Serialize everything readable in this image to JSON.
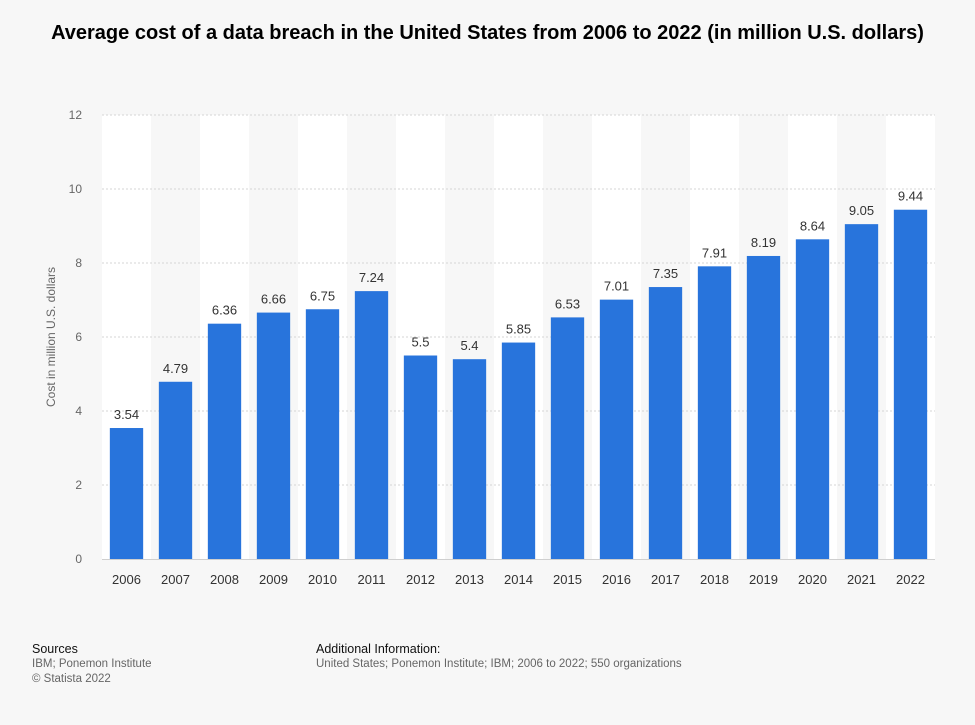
{
  "chart_data": {
    "type": "bar",
    "title": "Average cost of a data breach in the United States from 2006 to 2022 (in million U.S. dollars)",
    "xlabel": "",
    "ylabel": "Cost in million U.S. dollars",
    "ylim": [
      0,
      12
    ],
    "yticks": [
      0,
      2,
      4,
      6,
      8,
      10,
      12
    ],
    "grid": true,
    "categories": [
      "2006",
      "2007",
      "2008",
      "2009",
      "2010",
      "2011",
      "2012",
      "2013",
      "2014",
      "2015",
      "2016",
      "2017",
      "2018",
      "2019",
      "2020",
      "2021",
      "2022"
    ],
    "values": [
      3.54,
      4.79,
      6.36,
      6.66,
      6.75,
      7.24,
      5.5,
      5.4,
      5.85,
      6.53,
      7.01,
      7.35,
      7.91,
      8.19,
      8.64,
      9.05,
      9.44
    ],
    "value_labels": [
      "3.54",
      "4.79",
      "6.36",
      "6.66",
      "6.75",
      "7.24",
      "5.5",
      "5.4",
      "5.85",
      "6.53",
      "7.01",
      "7.35",
      "7.91",
      "8.19",
      "8.64",
      "9.05",
      "9.44"
    ],
    "bar_color": "#2874dc"
  },
  "footer": {
    "sources_heading": "Sources",
    "sources_lines": [
      "IBM; Ponemon Institute",
      "© Statista 2022"
    ],
    "additional_heading": "Additional Information:",
    "additional_text": "United States; Ponemon Institute; IBM; 2006 to 2022; 550 organizations"
  }
}
